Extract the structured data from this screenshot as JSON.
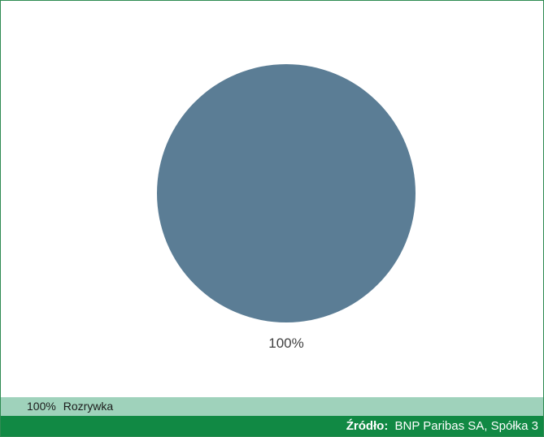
{
  "chart_data": {
    "type": "pie",
    "slices": [
      {
        "label": "Rozrywka",
        "value": 100,
        "display_label": "100%",
        "color": "#5b7d95"
      }
    ],
    "legend": {
      "placement": "bottom",
      "entries": [
        {
          "value_text": "100%",
          "label": "Rozrywka"
        }
      ]
    }
  },
  "source": {
    "label": "Źródło:",
    "value": "BNP Paribas SA, Spółka 3"
  },
  "colors": {
    "frame_border": "#2f8b52",
    "legend_background": "#9fd2bb",
    "source_background": "#118944",
    "slice": "#5b7d95"
  }
}
